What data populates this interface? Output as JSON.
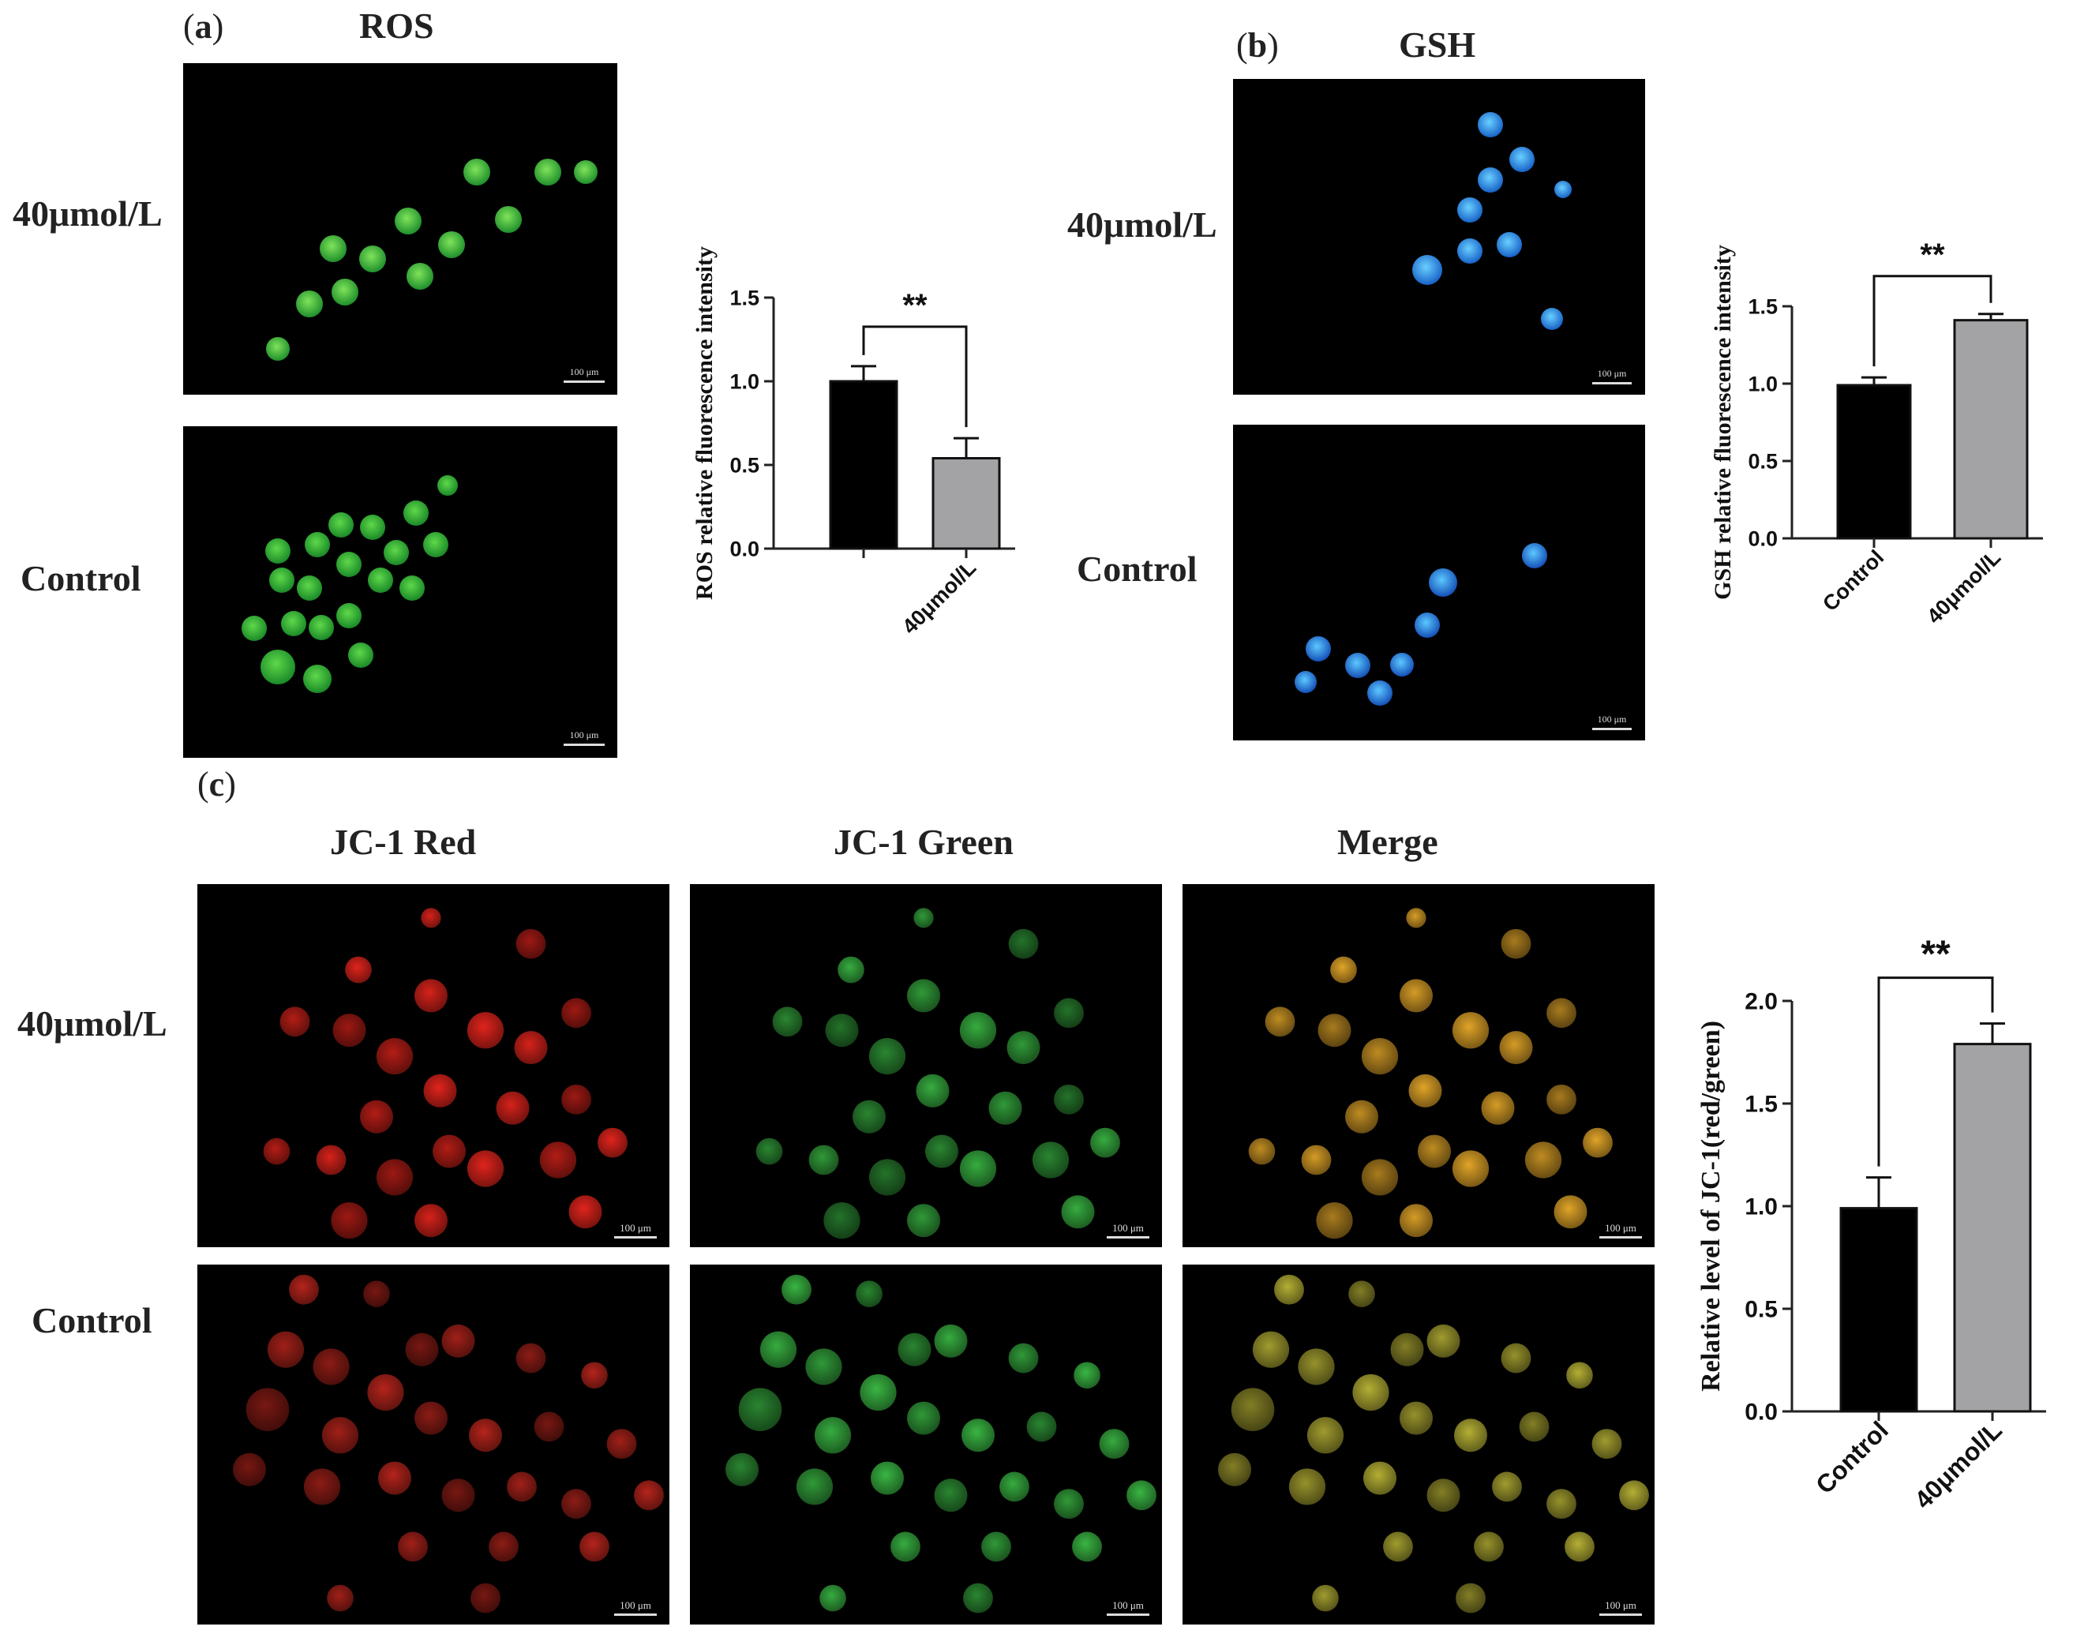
{
  "figure": {
    "panel_a": {
      "letter": "a",
      "title": "ROS",
      "row_labels": [
        "40μmol/L",
        "Control"
      ],
      "scale_bar": "100 μm"
    },
    "panel_b": {
      "letter": "b",
      "title": "GSH",
      "row_labels": [
        "40μmol/L",
        "Control"
      ],
      "scale_bar": "100 μm"
    },
    "panel_c": {
      "letter": "c",
      "column_titles": [
        "JC-1 Red",
        "JC-1 Green",
        "Merge"
      ],
      "row_labels": [
        "40μmol/L",
        "Control"
      ],
      "scale_bar": "100 μm"
    },
    "colors": {
      "control_bar": "#000000",
      "treated_bar": "#a3a3a6",
      "ros_green": "#3fbf3f",
      "gsh_blue": "#2f8fe8",
      "jc1_red": "#e0241c",
      "jc1_green": "#3cbf46",
      "merge": "#e0a428"
    }
  },
  "chart_data": [
    {
      "id": "ros",
      "type": "bar",
      "categories": [
        "",
        "40μmol/L"
      ],
      "values": [
        1.0,
        0.54
      ],
      "errors": [
        0.09,
        0.12
      ],
      "ylabel": "ROS relative fluorescence intensity",
      "ylim": [
        0,
        1.5
      ],
      "yticks": [
        "0.0",
        "0.5",
        "1.0",
        "1.5"
      ],
      "significance": "**"
    },
    {
      "id": "gsh",
      "type": "bar",
      "categories": [
        "Control",
        "40μmol/L"
      ],
      "values": [
        0.99,
        1.41
      ],
      "errors": [
        0.05,
        0.04
      ],
      "ylabel": "GSH relative fluorescence intensity",
      "ylim": [
        0,
        1.5
      ],
      "yticks": [
        "0.0",
        "0.5",
        "1.0",
        "1.5"
      ],
      "significance": "**"
    },
    {
      "id": "jc1",
      "type": "bar",
      "categories": [
        "Control",
        "40μmol/L"
      ],
      "values": [
        0.99,
        1.79
      ],
      "errors": [
        0.15,
        0.1
      ],
      "ylabel": "Relative level of JC-1(red/green)",
      "ylim": [
        0,
        2.0
      ],
      "yticks": [
        "0.0",
        "0.5",
        "1.0",
        "1.5",
        "2.0"
      ],
      "significance": "**"
    }
  ]
}
